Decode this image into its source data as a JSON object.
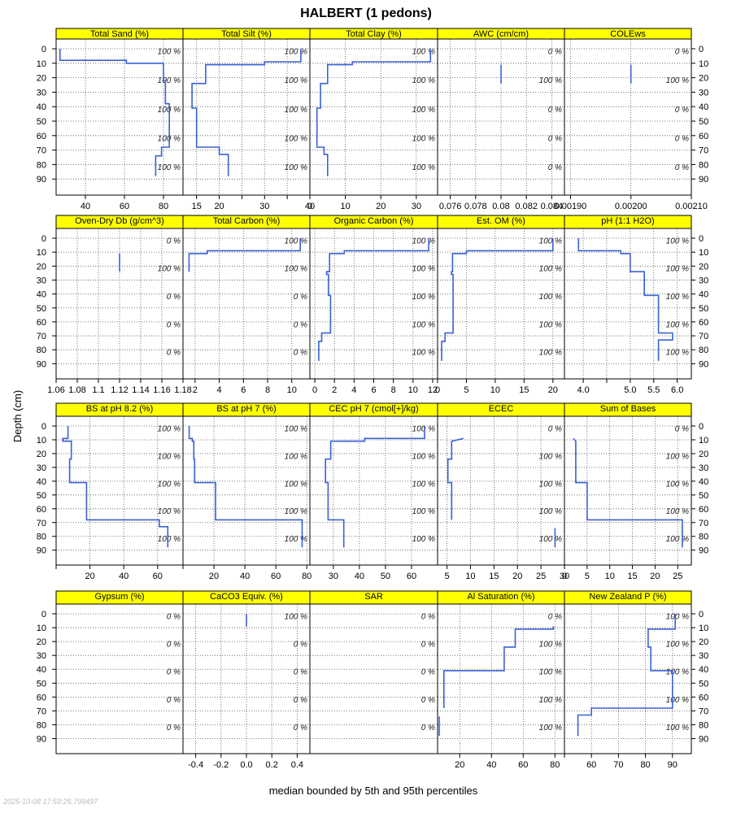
{
  "title": "HALBERT (1 pedons)",
  "ylabel": "Depth (cm)",
  "xlabel": "median bounded by 5th and 95th percentiles",
  "timestamp": "2025-10-08 17:59:25.799497",
  "colors": {
    "strip": "#ffff00",
    "line": "#3a62d6",
    "grid": "#555555"
  },
  "chart_data": {
    "type": "line",
    "ylim": [
      0,
      100
    ],
    "y_ticks": [
      0,
      10,
      20,
      30,
      40,
      50,
      60,
      70,
      80,
      90
    ],
    "pct_label_depths": [
      2,
      22,
      42,
      62,
      82
    ],
    "panels": [
      {
        "title": "Total Sand (%)",
        "xlim": [
          25,
          90
        ],
        "xticks": [
          40,
          60,
          80
        ],
        "pct": [
          "100 %",
          "100 %",
          "100 %",
          "100 %",
          "100 %"
        ],
        "profile": [
          [
            27,
            0
          ],
          [
            27,
            8
          ],
          [
            61,
            8
          ],
          [
            61,
            10
          ],
          [
            80,
            10
          ],
          [
            80,
            22
          ],
          [
            81,
            22
          ],
          [
            81,
            38
          ],
          [
            83,
            38
          ],
          [
            83,
            68
          ],
          [
            79,
            68
          ],
          [
            79,
            74
          ],
          [
            76,
            74
          ],
          [
            76,
            88
          ]
        ]
      },
      {
        "title": "Total Silt (%)",
        "xlim": [
          12,
          40
        ],
        "xticks": [
          15,
          20,
          25,
          30,
          35,
          40
        ],
        "xtick_labels": [
          "15",
          "20",
          "",
          "30",
          "",
          "40"
        ],
        "pct": [
          "100 %",
          "100 %",
          "100 %",
          "100 %",
          "100 %"
        ],
        "profile": [
          [
            38,
            0
          ],
          [
            38,
            9
          ],
          [
            30,
            9
          ],
          [
            30,
            11
          ],
          [
            17,
            11
          ],
          [
            17,
            24
          ],
          [
            14,
            24
          ],
          [
            14,
            41
          ],
          [
            15,
            41
          ],
          [
            15,
            68
          ],
          [
            20,
            68
          ],
          [
            20,
            73
          ],
          [
            22,
            73
          ],
          [
            22,
            88
          ]
        ]
      },
      {
        "title": "Total Clay (%)",
        "xlim": [
          0,
          36
        ],
        "xticks": [
          0,
          10,
          20,
          30
        ],
        "pct": [
          "100 %",
          "100 %",
          "100 %",
          "100 %",
          "100 %"
        ],
        "profile": [
          [
            34,
            0
          ],
          [
            34,
            9
          ],
          [
            12,
            9
          ],
          [
            12,
            11
          ],
          [
            5,
            11
          ],
          [
            5,
            24
          ],
          [
            3,
            24
          ],
          [
            3,
            41
          ],
          [
            2,
            41
          ],
          [
            2,
            68
          ],
          [
            4,
            68
          ],
          [
            4,
            73
          ],
          [
            5,
            73
          ],
          [
            5,
            88
          ]
        ]
      },
      {
        "title": "AWC (cm/cm)",
        "xlim": [
          0.075,
          0.085
        ],
        "xticks": [
          0.076,
          0.078,
          0.08,
          0.082,
          0.084
        ],
        "pct": [
          "0 %",
          "100 %",
          "0 %",
          "0 %",
          "0 %"
        ],
        "profile": [
          [
            0.08,
            11
          ],
          [
            0.08,
            24
          ]
        ]
      },
      {
        "title": "COLEws",
        "xlim": [
          0.00189,
          0.0021
        ],
        "xticks": [
          0.0019,
          0.002,
          0.0021
        ],
        "xtick_labels": [
          "0.00190",
          "0.00200",
          "0.00210"
        ],
        "pct": [
          "0 %",
          "100 %",
          "0 %",
          "0 %",
          "0 %"
        ],
        "profile": [
          [
            0.002,
            11
          ],
          [
            0.002,
            24
          ]
        ]
      },
      {
        "title": "Oven-Dry Db (g/cm^3)",
        "xlim": [
          1.06,
          1.18
        ],
        "xticks": [
          1.06,
          1.08,
          1.1,
          1.12,
          1.14,
          1.16,
          1.18
        ],
        "pct": [
          "0 %",
          "100 %",
          "0 %",
          "0 %",
          "0 %"
        ],
        "profile": [
          [
            1.12,
            11
          ],
          [
            1.12,
            24
          ]
        ]
      },
      {
        "title": "Total Carbon (%)",
        "xlim": [
          1,
          11.5
        ],
        "xticks": [
          2,
          4,
          6,
          8,
          10
        ],
        "pct": [
          "100 %",
          "100 %",
          "0 %",
          "0 %",
          "0 %"
        ],
        "profile": [
          [
            10.7,
            0
          ],
          [
            10.7,
            9
          ],
          [
            3,
            9
          ],
          [
            3,
            11
          ],
          [
            1.5,
            11
          ],
          [
            1.5,
            24
          ]
        ]
      },
      {
        "title": "Organic Carbon (%)",
        "xlim": [
          -0.5,
          12.5
        ],
        "xticks": [
          0,
          2,
          4,
          6,
          8,
          10,
          12
        ],
        "pct": [
          "100 %",
          "100 %",
          "100 %",
          "100 %",
          "100 %"
        ],
        "profile": [
          [
            11.6,
            0
          ],
          [
            11.6,
            9
          ],
          [
            3,
            9
          ],
          [
            3,
            11
          ],
          [
            1.5,
            11
          ],
          [
            1.5,
            24
          ],
          [
            1.2,
            24
          ],
          [
            1.2,
            26
          ],
          [
            1.4,
            26
          ],
          [
            1.4,
            41
          ],
          [
            1.6,
            41
          ],
          [
            1.6,
            68
          ],
          [
            0.7,
            68
          ],
          [
            0.7,
            74
          ],
          [
            0.4,
            74
          ],
          [
            0.4,
            88
          ]
        ]
      },
      {
        "title": "Est. OM (%)",
        "xlim": [
          0,
          22
        ],
        "xticks": [
          0,
          5,
          10,
          15,
          20
        ],
        "pct": [
          "100 %",
          "100 %",
          "100 %",
          "100 %",
          "100 %"
        ],
        "profile": [
          [
            20,
            0
          ],
          [
            20,
            9
          ],
          [
            5,
            9
          ],
          [
            5,
            11
          ],
          [
            2.6,
            11
          ],
          [
            2.6,
            24
          ],
          [
            2.4,
            24
          ],
          [
            2.4,
            26
          ],
          [
            2.7,
            26
          ],
          [
            2.7,
            68
          ],
          [
            1.3,
            68
          ],
          [
            1.3,
            74
          ],
          [
            0.7,
            74
          ],
          [
            0.7,
            88
          ]
        ]
      },
      {
        "title": "pH (1:1 H2O)",
        "xlim": [
          3.6,
          6.3
        ],
        "xticks": [
          4.0,
          4.5,
          5.0,
          5.5,
          6.0
        ],
        "xtick_labels": [
          "4.0",
          "",
          "5.0",
          "5.5",
          "6.0"
        ],
        "pct": [
          "100 %",
          "100 %",
          "100 %",
          "100 %",
          "100 %"
        ],
        "profile": [
          [
            3.9,
            0
          ],
          [
            3.9,
            9
          ],
          [
            4.8,
            9
          ],
          [
            4.8,
            11
          ],
          [
            5.0,
            11
          ],
          [
            5.0,
            24
          ],
          [
            5.3,
            24
          ],
          [
            5.3,
            41
          ],
          [
            5.6,
            41
          ],
          [
            5.6,
            68
          ],
          [
            5.9,
            68
          ],
          [
            5.9,
            73
          ],
          [
            5.6,
            73
          ],
          [
            5.6,
            88
          ]
        ]
      },
      {
        "title": "BS at pH 8.2 (%)",
        "xlim": [
          0,
          75
        ],
        "xticks": [
          0,
          20,
          40,
          60
        ],
        "xtick_labels": [
          "",
          "20",
          "40",
          "60"
        ],
        "pct": [
          "100 %",
          "100 %",
          "100 %",
          "100 %",
          "100 %"
        ],
        "profile": [
          [
            7,
            0
          ],
          [
            7,
            9
          ],
          [
            4,
            9
          ],
          [
            4,
            11
          ],
          [
            9,
            11
          ],
          [
            9,
            24
          ],
          [
            8,
            24
          ],
          [
            8,
            41
          ],
          [
            18,
            41
          ],
          [
            18,
            68
          ],
          [
            61,
            68
          ],
          [
            61,
            73
          ],
          [
            66,
            73
          ],
          [
            66,
            88
          ]
        ]
      },
      {
        "title": "BS at pH 7 (%)",
        "xlim": [
          0,
          82
        ],
        "xticks": [
          0,
          20,
          40,
          60,
          80
        ],
        "xtick_labels": [
          "",
          "20",
          "40",
          "60",
          "80"
        ],
        "pct": [
          "100 %",
          "100 %",
          "100 %",
          "100 %",
          "100 %"
        ],
        "profile": [
          [
            4,
            0
          ],
          [
            4,
            9
          ],
          [
            6,
            9
          ],
          [
            6,
            11
          ],
          [
            7,
            11
          ],
          [
            7,
            24
          ],
          [
            7.5,
            24
          ],
          [
            7.5,
            41
          ],
          [
            21,
            41
          ],
          [
            21,
            68
          ],
          [
            77,
            68
          ],
          [
            77,
            88
          ]
        ]
      },
      {
        "title": "CEC pH 7 (cmol[+]/kg)",
        "xlim": [
          21,
          70
        ],
        "xticks": [
          30,
          40,
          50,
          60
        ],
        "pct": [
          "100 %",
          "100 %",
          "100 %",
          "100 %",
          "100 %"
        ],
        "profile": [
          [
            65,
            0
          ],
          [
            65,
            9
          ],
          [
            42,
            9
          ],
          [
            42,
            11
          ],
          [
            29,
            11
          ],
          [
            29,
            24
          ],
          [
            27,
            24
          ],
          [
            27,
            41
          ],
          [
            28,
            41
          ],
          [
            28,
            68
          ],
          [
            34,
            68
          ],
          [
            34,
            88
          ]
        ]
      },
      {
        "title": "ECEC",
        "xlim": [
          3,
          30
        ],
        "xticks": [
          5,
          10,
          15,
          20,
          25,
          30
        ],
        "xtick_labels": [
          "5",
          "10",
          "15",
          "20",
          "25",
          "30"
        ],
        "pct": [
          "0 %",
          "100 %",
          "100 %",
          "100 %",
          "100 %"
        ],
        "profile": [
          [
            8.5,
            9
          ],
          [
            6,
            11
          ],
          [
            6,
            24
          ],
          [
            5.2,
            24
          ],
          [
            5.2,
            41
          ],
          [
            6,
            41
          ],
          [
            6,
            68
          ]
        ],
        "profile_extra": [
          [
            28,
            74
          ],
          [
            28,
            88
          ]
        ]
      },
      {
        "title": "Sum of Bases",
        "xlim": [
          0,
          28
        ],
        "xticks": [
          0,
          5,
          10,
          15,
          20,
          25
        ],
        "xtick_labels": [
          "0",
          "5",
          "10",
          "15",
          "20",
          "25"
        ],
        "pct": [
          "0 %",
          "100 %",
          "100 %",
          "100 %",
          "100 %"
        ],
        "profile": [
          [
            2,
            9
          ],
          [
            2.5,
            11
          ],
          [
            2.5,
            24
          ],
          [
            2.5,
            41
          ],
          [
            5,
            41
          ],
          [
            5,
            68
          ],
          [
            26,
            68
          ],
          [
            26,
            88
          ]
        ]
      },
      {
        "title": "Gypsum (%)",
        "xlim": [
          0,
          1
        ],
        "xticks": [],
        "pct": [
          "0 %",
          "0 %",
          "0 %",
          "0 %",
          "0 %"
        ],
        "profile": []
      },
      {
        "title": "CaCO3 Equiv. (%)",
        "xlim": [
          -0.5,
          0.5
        ],
        "xticks": [
          -0.4,
          -0.2,
          0.0,
          0.2,
          0.4
        ],
        "xtick_labels": [
          "-0.4",
          "-0.2",
          "0.0",
          "0.2",
          "0.4"
        ],
        "pct": [
          "100 %",
          "0 %",
          "0 %",
          "0 %",
          "0 %"
        ],
        "profile": [
          [
            0,
            0
          ],
          [
            0,
            9
          ]
        ]
      },
      {
        "title": "SAR",
        "xlim": [
          0,
          1
        ],
        "xticks": [],
        "pct": [
          "0 %",
          "0 %",
          "0 %",
          "0 %",
          "0 %"
        ],
        "profile": []
      },
      {
        "title": "Al Saturation (%)",
        "xlim": [
          6,
          86
        ],
        "xticks": [
          20,
          40,
          60,
          80
        ],
        "pct": [
          "0 %",
          "100 %",
          "100 %",
          "100 %",
          "100 %"
        ],
        "profile": [
          [
            79,
            9
          ],
          [
            79,
            11
          ],
          [
            55,
            11
          ],
          [
            55,
            24
          ],
          [
            48,
            24
          ],
          [
            48,
            41
          ],
          [
            10,
            41
          ],
          [
            10,
            68
          ]
        ],
        "profile_extra": [
          [
            7,
            74
          ],
          [
            7,
            88
          ]
        ]
      },
      {
        "title": "New Zealand P (%)",
        "xlim": [
          50,
          97
        ],
        "xticks": [
          50,
          60,
          70,
          80,
          90
        ],
        "xtick_labels": [
          "",
          "60",
          "70",
          "80",
          "90"
        ],
        "pct": [
          "100 %",
          "100 %",
          "100 %",
          "100 %",
          "100 %"
        ],
        "profile": [
          [
            91,
            0
          ],
          [
            91,
            11
          ],
          [
            81,
            11
          ],
          [
            81,
            24
          ],
          [
            82,
            24
          ],
          [
            82,
            41
          ],
          [
            90,
            41
          ],
          [
            90,
            68
          ],
          [
            60,
            68
          ],
          [
            60,
            73
          ],
          [
            55,
            73
          ],
          [
            55,
            88
          ]
        ]
      }
    ]
  }
}
